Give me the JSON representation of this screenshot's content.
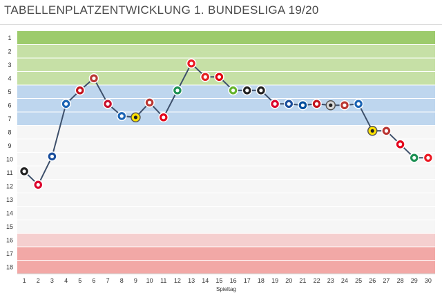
{
  "title": "TABELLENPLATZENTWICKLUNG 1. BUNDESLIGA 19/20",
  "chart_data": {
    "type": "line",
    "title": "TABELLENPLATZENTWICKLUNG 1. BUNDESLIGA 19/20",
    "xlabel": "Spieltag",
    "ylabel": "",
    "x": [
      1,
      2,
      3,
      4,
      5,
      6,
      7,
      8,
      9,
      10,
      11,
      12,
      13,
      14,
      15,
      16,
      17,
      18,
      19,
      20,
      21,
      22,
      23,
      24,
      25,
      26,
      27,
      28,
      29,
      30
    ],
    "y_ticks": [
      1,
      2,
      3,
      4,
      5,
      6,
      7,
      8,
      9,
      10,
      11,
      12,
      13,
      14,
      15,
      16,
      17,
      18
    ],
    "ylim": [
      18,
      1
    ],
    "y_inverted": true,
    "grid": true,
    "bands": [
      {
        "from": 1,
        "to": 1,
        "color": "#9dcb6c"
      },
      {
        "from": 2,
        "to": 4,
        "color": "#c6e0a6"
      },
      {
        "from": 5,
        "to": 7,
        "color": "#bed6ee"
      },
      {
        "from": 8,
        "to": 15,
        "color": "#f6f6f6"
      },
      {
        "from": 16,
        "to": 16,
        "color": "#f5cfcf"
      },
      {
        "from": 17,
        "to": 18,
        "color": "#f2a8a6"
      }
    ],
    "line_color": "#3d4f6a",
    "series": [
      {
        "values": [
          10.9,
          11.9,
          9.8,
          5.9,
          4.9,
          4.0,
          5.9,
          6.8,
          6.9,
          5.8,
          6.9,
          4.9,
          2.9,
          3.9,
          3.9,
          4.9,
          4.9,
          4.9,
          5.9,
          5.9,
          6.0,
          5.9,
          6.0,
          6.0,
          5.9,
          7.9,
          7.9,
          8.9,
          9.9,
          9.9
        ]
      }
    ],
    "markers": [
      {
        "x": 1,
        "icon": "black-white-crest",
        "color": "#222222"
      },
      {
        "x": 2,
        "icon": "fcb-crest",
        "color": "#dc052d"
      },
      {
        "x": 3,
        "icon": "hertha-crest",
        "color": "#1a4e9c"
      },
      {
        "x": 4,
        "icon": "hoffenheim-crest",
        "color": "#1a63b4"
      },
      {
        "x": 5,
        "icon": "mainz-crest",
        "color": "#c3141e"
      },
      {
        "x": 6,
        "icon": "augsburg-crest",
        "color": "#ba3733"
      },
      {
        "x": 7,
        "icon": "koeln-crest",
        "color": "#c8102e"
      },
      {
        "x": 8,
        "icon": "hoffenheim-crest",
        "color": "#1a63b4"
      },
      {
        "x": 9,
        "icon": "bvb-crest",
        "color": "#fde100"
      },
      {
        "x": 10,
        "icon": "augsburg-crest",
        "color": "#ba3733"
      },
      {
        "x": 11,
        "icon": "duesseldorf-crest",
        "color": "#e3001b"
      },
      {
        "x": 12,
        "icon": "bremen-crest",
        "color": "#1d9053"
      },
      {
        "x": 13,
        "icon": "union-crest",
        "color": "#eb1923"
      },
      {
        "x": 14,
        "icon": "leverkusen-crest",
        "color": "#e32221"
      },
      {
        "x": 15,
        "icon": "frankfurt-crest",
        "color": "#e1000f"
      },
      {
        "x": 16,
        "icon": "wolfsburg-crest",
        "color": "#65b32e"
      },
      {
        "x": 17,
        "icon": "freiburg-crest",
        "color": "#222222"
      },
      {
        "x": 18,
        "icon": "gladbach-crest",
        "color": "#222222"
      },
      {
        "x": 19,
        "icon": "fcb-crest",
        "color": "#dc052d"
      },
      {
        "x": 20,
        "icon": "hertha-crest",
        "color": "#1a4e9c"
      },
      {
        "x": 21,
        "icon": "schalke-crest",
        "color": "#004d9d"
      },
      {
        "x": 22,
        "icon": "mainz-crest",
        "color": "#c3141e"
      },
      {
        "x": 23,
        "icon": "paderborn-crest",
        "color": "#d9d9d9"
      },
      {
        "x": 24,
        "icon": "augsburg-crest",
        "color": "#ba3733"
      },
      {
        "x": 25,
        "icon": "hoffenheim-crest",
        "color": "#1a63b4"
      },
      {
        "x": 26,
        "icon": "bvb-crest",
        "color": "#fde100"
      },
      {
        "x": 27,
        "icon": "augsburg-crest",
        "color": "#ba3733"
      },
      {
        "x": 28,
        "icon": "duesseldorf-crest",
        "color": "#e3001b"
      },
      {
        "x": 29,
        "icon": "bremen-crest",
        "color": "#1d9053"
      },
      {
        "x": 30,
        "icon": "union-crest",
        "color": "#eb1923"
      }
    ]
  }
}
